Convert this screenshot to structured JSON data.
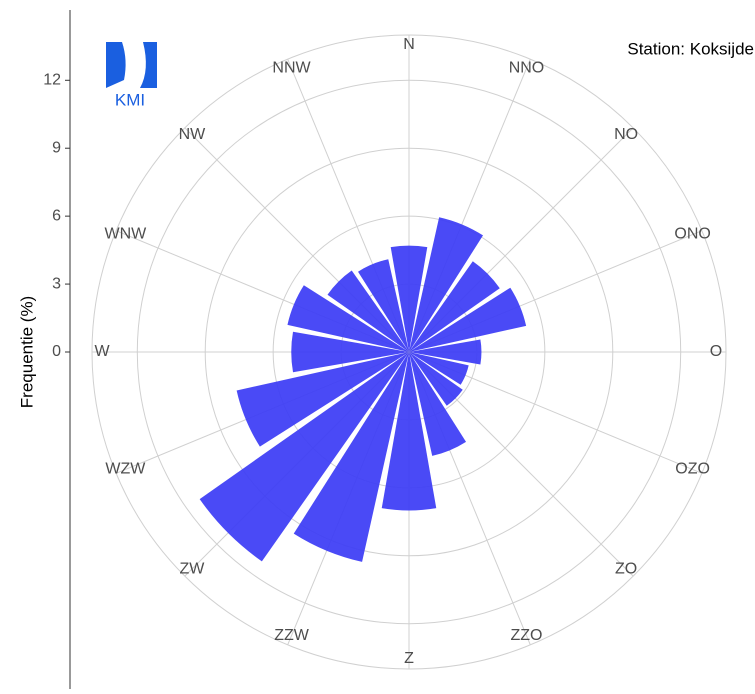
{
  "chart_data": {
    "type": "polar-bar",
    "title": "Station: Koksijde",
    "logo_text": "KMI",
    "y_label": "Frequentie (%)",
    "categories": [
      "N",
      "NNO",
      "NO",
      "ONO",
      "O",
      "OZO",
      "ZO",
      "ZZO",
      "Z",
      "ZZW",
      "ZW",
      "WZW",
      "W",
      "WNW",
      "NW",
      "NNW"
    ],
    "values": [
      4.7,
      6.1,
      4.9,
      5.3,
      3.2,
      2.7,
      2.9,
      4.7,
      7.0,
      9.5,
      11.3,
      7.8,
      5.2,
      5.5,
      4.4,
      4.2
    ],
    "color": "#3b3bf5",
    "ylim": [
      0,
      14
    ],
    "yticks": [
      0,
      3,
      6,
      9,
      12
    ],
    "grid": true
  }
}
